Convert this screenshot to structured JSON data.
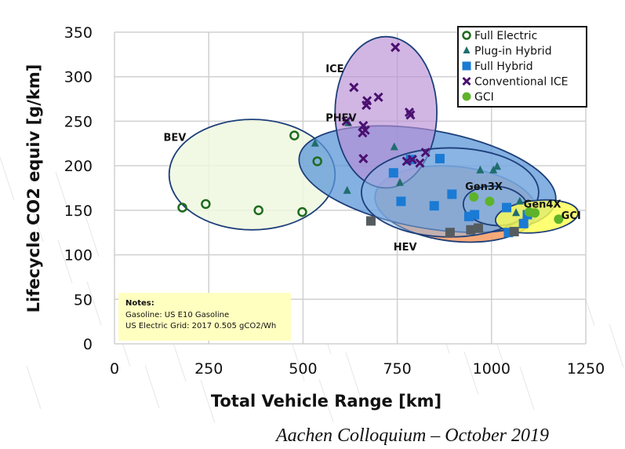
{
  "chart_data": {
    "type": "scatter",
    "title": "",
    "xlabel": "Total Vehicle Range [km]",
    "ylabel": "Lifecycle CO2 equiv [g/km]",
    "xlim": [
      0,
      1250
    ],
    "ylim": [
      0,
      350
    ],
    "xticks": [
      0,
      250,
      500,
      750,
      1000,
      1250
    ],
    "yticks": [
      0,
      50,
      100,
      150,
      200,
      250,
      300,
      350
    ],
    "grid": true,
    "legend_position": "top-right",
    "legend": [
      "Full Electric",
      "Plug-in Hybrid",
      "Full Hybrid",
      "Conventional ICE",
      "GCI"
    ],
    "series": [
      {
        "name": "Full Electric",
        "marker": "circle-open",
        "color": "#1e6b1e",
        "points": [
          [
            180,
            153
          ],
          [
            242,
            157
          ],
          [
            382,
            150
          ],
          [
            498,
            148
          ],
          [
            477,
            234
          ],
          [
            538,
            205
          ]
        ]
      },
      {
        "name": "Plug-in Hybrid",
        "marker": "triangle",
        "color": "#1f6e6e",
        "points": [
          [
            532,
            225
          ],
          [
            620,
            248
          ],
          [
            617,
            172
          ],
          [
            742,
            221
          ],
          [
            757,
            181
          ],
          [
            970,
            195
          ],
          [
            1005,
            195
          ],
          [
            1015,
            199
          ],
          [
            1065,
            147
          ],
          [
            1075,
            160
          ]
        ]
      },
      {
        "name": "Full Hybrid",
        "marker": "square",
        "color": "#1a7ad4",
        "points": [
          [
            740,
            192
          ],
          [
            760,
            160
          ],
          [
            785,
            207
          ],
          [
            863,
            208
          ],
          [
            848,
            155
          ],
          [
            895,
            168
          ],
          [
            940,
            143
          ],
          [
            955,
            145
          ],
          [
            1040,
            153
          ],
          [
            1045,
            125
          ],
          [
            1085,
            135
          ],
          [
            1095,
            145
          ]
        ]
      },
      {
        "name": "Conventional ICE",
        "marker": "x",
        "color": "#4b1070",
        "points": [
          [
            745,
            333
          ],
          [
            635,
            288
          ],
          [
            670,
            273
          ],
          [
            668,
            268
          ],
          [
            700,
            277
          ],
          [
            782,
            260
          ],
          [
            785,
            257
          ],
          [
            615,
            250
          ],
          [
            660,
            245
          ],
          [
            658,
            237
          ],
          [
            665,
            240
          ],
          [
            660,
            208
          ],
          [
            775,
            205
          ],
          [
            790,
            207
          ],
          [
            825,
            215
          ],
          [
            810,
            203
          ]
        ]
      },
      {
        "name": "GCI",
        "marker": "circle",
        "color": "#5db32a",
        "points": [
          [
            953,
            165
          ],
          [
            995,
            160
          ],
          [
            1100,
            148
          ],
          [
            1115,
            147
          ],
          [
            1178,
            140
          ]
        ]
      },
      {
        "name": "HEV (grey)",
        "marker": "square",
        "color": "#555c60",
        "points": [
          [
            680,
            138
          ],
          [
            890,
            125
          ],
          [
            945,
            128
          ],
          [
            965,
            130
          ],
          [
            1060,
            126
          ]
        ]
      }
    ],
    "regions": [
      {
        "label": "BEV",
        "cx": 365,
        "cy": 190,
        "rx": 220,
        "ry": 62,
        "rotate": 0,
        "fill": "#eef8e0",
        "opacity": 0.85
      },
      {
        "label": "HEV",
        "cx": 905,
        "cy": 157,
        "rx": 215,
        "ry": 42,
        "rotate": 6,
        "fill": "#f6a06a",
        "opacity": 0.9
      },
      {
        "label": "PHEV",
        "cx": 830,
        "cy": 185,
        "rx": 345,
        "ry": 55,
        "rotate": 10,
        "fill": "#5b95d8",
        "opacity": 0.75
      },
      {
        "label": "ICE",
        "cx": 720,
        "cy": 260,
        "rx": 135,
        "ry": 85,
        "rotate": 0,
        "fill": "#b98fd6",
        "opacity": 0.65
      },
      {
        "label": "",
        "cx": 890,
        "cy": 170,
        "rx": 235,
        "ry": 50,
        "rotate": 0,
        "fill": "#8fb8e6",
        "opacity": 0.5
      },
      {
        "label": "Gen3X",
        "cx": 1010,
        "cy": 155,
        "rx": 85,
        "ry": 22,
        "rotate": 5,
        "fill": "#8fb8e6",
        "opacity": 0.3
      },
      {
        "label": "GCI",
        "cx": 1120,
        "cy": 143,
        "rx": 110,
        "ry": 18,
        "rotate": -6,
        "fill": "#ffff50",
        "opacity": 0.8
      }
    ],
    "annotations": [
      {
        "text": "BEV",
        "x": 130,
        "y": 228
      },
      {
        "text": "PHEV",
        "x": 560,
        "y": 250
      },
      {
        "text": "ICE",
        "x": 560,
        "y": 305
      },
      {
        "text": "HEV",
        "x": 740,
        "y": 105
      },
      {
        "text": "Gen3X",
        "x": 930,
        "y": 173
      },
      {
        "text": "Gen4X",
        "x": 1085,
        "y": 153
      },
      {
        "text": "GCI",
        "x": 1185,
        "y": 140
      }
    ],
    "notes": {
      "title": "Notes:",
      "lines": [
        "Gasoline:  US E10 Gasoline",
        "US Electric Grid: 2017 0.505 gCO2/Wh"
      ]
    }
  },
  "footer": "Aachen Colloquium –  October 2019"
}
